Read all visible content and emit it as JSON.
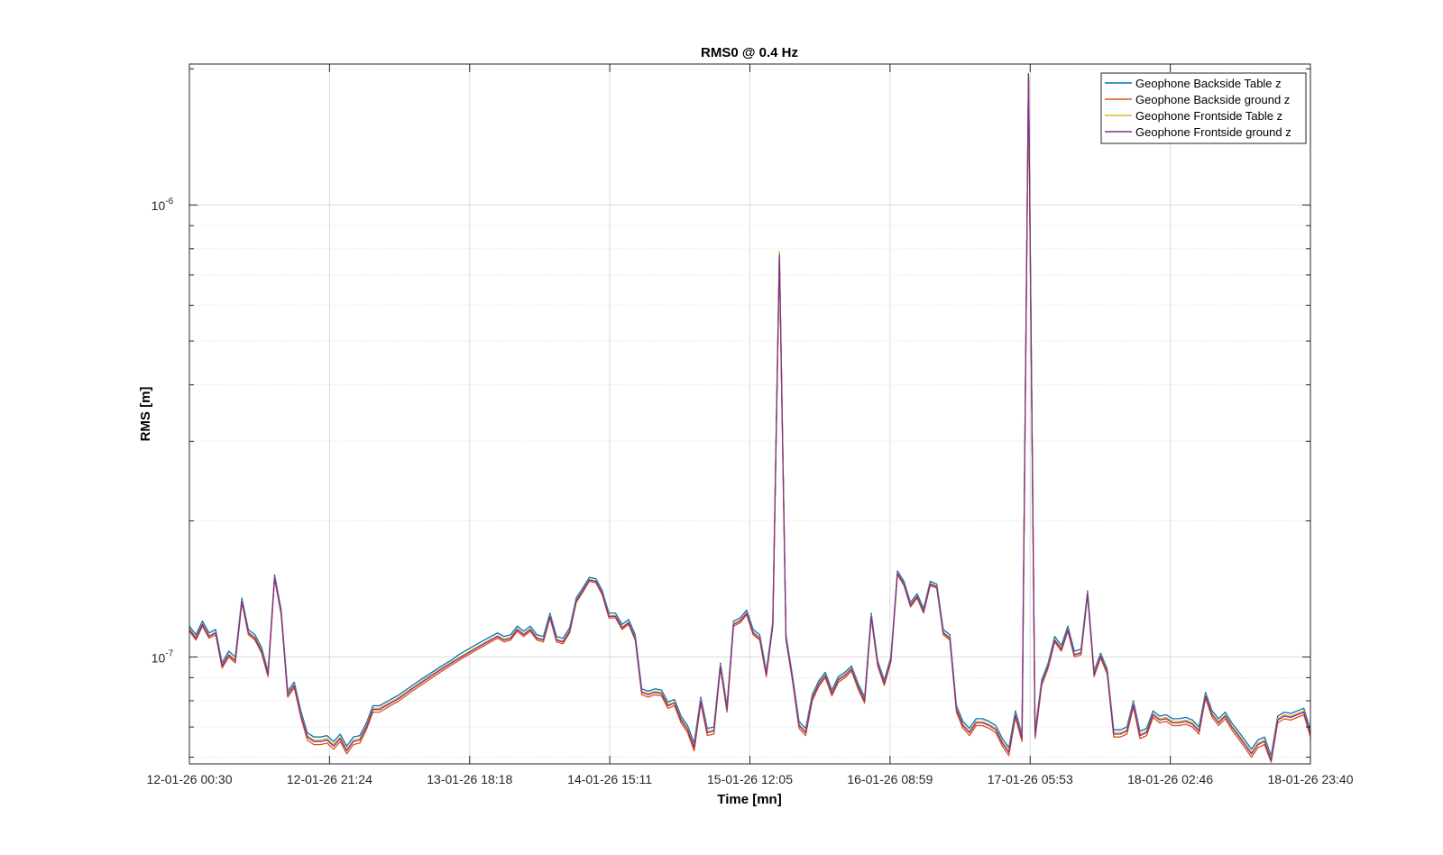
{
  "chart_data": {
    "type": "line",
    "title": "RMS0 @ 0.4 Hz",
    "xlabel": "Time [mn]",
    "ylabel": "RMS [m]",
    "yscale": "log",
    "ylim": [
      5.8e-08,
      2.05e-06
    ],
    "xlim": [
      "12-01-26 00:30",
      "18-01-26 23:40"
    ],
    "x_ticks": [
      "12-01-26 00:30",
      "12-01-26 21:24",
      "13-01-26 18:18",
      "14-01-26 15:11",
      "15-01-26 12:05",
      "16-01-26 08:59",
      "17-01-26 05:53",
      "18-01-26 02:46",
      "18-01-26 23:40"
    ],
    "y_ticks": [
      {
        "value": 1e-07,
        "base": "10",
        "exp": "-7"
      },
      {
        "value": 1e-06,
        "base": "10",
        "exp": "-6"
      }
    ],
    "grid": true,
    "legend_position": "top-right",
    "colors": [
      "#0072BD",
      "#D95319",
      "#EDB120",
      "#7E2F8E"
    ],
    "sample_interval_hours": 1,
    "series": [
      {
        "name": "Geophone Backside Table z",
        "values": [
          1.17e-07,
          1.12e-07,
          1.2e-07,
          1.13e-07,
          1.15e-07,
          9.7e-08,
          1.03e-07,
          1e-07,
          1.35e-07,
          1.15e-07,
          1.12e-07,
          1.05e-07,
          9.3e-08,
          1.52e-07,
          1.27e-07,
          8.4e-08,
          8.8e-08,
          7.6e-08,
          6.8e-08,
          6.65e-08,
          6.65e-08,
          6.7e-08,
          6.5e-08,
          6.75e-08,
          6.35e-08,
          6.65e-08,
          6.7e-08,
          7.15e-08,
          7.8e-08,
          7.8e-08,
          7.95e-08,
          8.1e-08,
          8.25e-08,
          8.45e-08,
          8.65e-08,
          8.85e-08,
          9.05e-08,
          9.25e-08,
          9.45e-08,
          9.65e-08,
          9.85e-08,
          1.01e-07,
          1.03e-07,
          1.05e-07,
          1.07e-07,
          1.09e-07,
          1.11e-07,
          1.13e-07,
          1.11e-07,
          1.12e-07,
          1.17e-07,
          1.14e-07,
          1.17e-07,
          1.12e-07,
          1.11e-07,
          1.25e-07,
          1.11e-07,
          1.1e-07,
          1.16e-07,
          1.35e-07,
          1.42e-07,
          1.5e-07,
          1.49e-07,
          1.4e-07,
          1.25e-07,
          1.25e-07,
          1.18e-07,
          1.21e-07,
          1.12e-07,
          8.5e-08,
          8.4e-08,
          8.5e-08,
          8.45e-08,
          7.95e-08,
          8.05e-08,
          7.4e-08,
          7.05e-08,
          6.45e-08,
          8.15e-08,
          6.95e-08,
          7e-08,
          9.7e-08,
          7.8e-08,
          1.2e-07,
          1.22e-07,
          1.27e-07,
          1.15e-07,
          1.12e-07,
          9.3e-08,
          1.2e-07,
          7.8e-07,
          1.12e-07,
          9.1e-08,
          7.2e-08,
          6.95e-08,
          8.25e-08,
          8.85e-08,
          9.25e-08,
          8.45e-08,
          9.05e-08,
          9.25e-08,
          9.55e-08,
          8.75e-08,
          8.15e-08,
          1.25e-07,
          9.8e-08,
          8.9e-08,
          1e-07,
          1.55e-07,
          1.47e-07,
          1.32e-07,
          1.38e-07,
          1.28e-07,
          1.47e-07,
          1.45e-07,
          1.15e-07,
          1.12e-07,
          7.8e-08,
          7.2e-08,
          6.95e-08,
          7.3e-08,
          7.3e-08,
          7.2e-08,
          7.05e-08,
          6.6e-08,
          6.3e-08,
          7.6e-08,
          6.75e-08,
          1.95e-06,
          6.85e-08,
          8.9e-08,
          9.7e-08,
          1.11e-07,
          1.06e-07,
          1.17e-07,
          1.03e-07,
          1.04e-07,
          1.4e-07,
          9.3e-08,
          1.02e-07,
          9.4e-08,
          6.9e-08,
          6.9e-08,
          7e-08,
          8e-08,
          6.85e-08,
          6.95e-08,
          7.6e-08,
          7.4e-08,
          7.45e-08,
          7.3e-08,
          7.3e-08,
          7.35e-08,
          7.25e-08,
          7e-08,
          8.35e-08,
          7.6e-08,
          7.3e-08,
          7.55e-08,
          7.15e-08,
          6.85e-08,
          6.55e-08,
          6.25e-08,
          6.55e-08,
          6.65e-08,
          6.05e-08,
          7.4e-08,
          7.55e-08,
          7.5e-08,
          7.6e-08,
          7.7e-08,
          6.9e-08
        ]
      },
      {
        "name": "Geophone Backside ground z",
        "values": [
          1.14e-07,
          1.09e-07,
          1.17e-07,
          1.1e-07,
          1.12e-07,
          9.45e-08,
          1e-07,
          9.7e-08,
          1.32e-07,
          1.12e-07,
          1.09e-07,
          1.02e-07,
          9.05e-08,
          1.49e-07,
          1.24e-07,
          8.15e-08,
          8.55e-08,
          7.35e-08,
          6.55e-08,
          6.4e-08,
          6.4e-08,
          6.45e-08,
          6.25e-08,
          6.5e-08,
          6.1e-08,
          6.4e-08,
          6.45e-08,
          6.9e-08,
          7.55e-08,
          7.55e-08,
          7.7e-08,
          7.85e-08,
          8e-08,
          8.2e-08,
          8.4e-08,
          8.6e-08,
          8.8e-08,
          9e-08,
          9.2e-08,
          9.4e-08,
          9.6e-08,
          9.8e-08,
          1e-07,
          1.02e-07,
          1.04e-07,
          1.06e-07,
          1.08e-07,
          1.1e-07,
          1.08e-07,
          1.09e-07,
          1.14e-07,
          1.11e-07,
          1.14e-07,
          1.09e-07,
          1.08e-07,
          1.22e-07,
          1.08e-07,
          1.07e-07,
          1.13e-07,
          1.32e-07,
          1.39e-07,
          1.47e-07,
          1.46e-07,
          1.37e-07,
          1.22e-07,
          1.22e-07,
          1.15e-07,
          1.18e-07,
          1.09e-07,
          8.25e-08,
          8.15e-08,
          8.25e-08,
          8.2e-08,
          7.7e-08,
          7.8e-08,
          7.15e-08,
          6.8e-08,
          6.2e-08,
          7.9e-08,
          6.7e-08,
          6.75e-08,
          9.45e-08,
          7.55e-08,
          1.17e-07,
          1.19e-07,
          1.24e-07,
          1.12e-07,
          1.09e-07,
          9.05e-08,
          1.17e-07,
          7.7e-07,
          1.09e-07,
          8.85e-08,
          6.95e-08,
          6.7e-08,
          8e-08,
          8.6e-08,
          9e-08,
          8.2e-08,
          8.8e-08,
          9e-08,
          9.3e-08,
          8.5e-08,
          7.9e-08,
          1.22e-07,
          9.55e-08,
          8.65e-08,
          9.75e-08,
          1.52e-07,
          1.44e-07,
          1.29e-07,
          1.35e-07,
          1.25e-07,
          1.44e-07,
          1.42e-07,
          1.12e-07,
          1.09e-07,
          7.55e-08,
          6.95e-08,
          6.7e-08,
          7.05e-08,
          7.05e-08,
          6.95e-08,
          6.8e-08,
          6.35e-08,
          6.05e-08,
          7.35e-08,
          6.5e-08,
          1.93e-06,
          6.6e-08,
          8.65e-08,
          9.45e-08,
          1.08e-07,
          1.03e-07,
          1.14e-07,
          1e-07,
          1.01e-07,
          1.37e-07,
          9.05e-08,
          9.95e-08,
          9.15e-08,
          6.65e-08,
          6.65e-08,
          6.75e-08,
          7.75e-08,
          6.6e-08,
          6.7e-08,
          7.35e-08,
          7.15e-08,
          7.2e-08,
          7.05e-08,
          7.05e-08,
          7.1e-08,
          7e-08,
          6.75e-08,
          8.1e-08,
          7.35e-08,
          7.05e-08,
          7.3e-08,
          6.9e-08,
          6.6e-08,
          6.3e-08,
          6e-08,
          6.3e-08,
          6.4e-08,
          5.85e-08,
          7.15e-08,
          7.3e-08,
          7.25e-08,
          7.35e-08,
          7.45e-08,
          6.65e-08
        ]
      },
      {
        "name": "Geophone Frontside Table z",
        "values": [
          1.155e-07,
          1.105e-07,
          1.185e-07,
          1.115e-07,
          1.135e-07,
          9.6e-08,
          1.015e-07,
          9.85e-08,
          1.335e-07,
          1.135e-07,
          1.105e-07,
          1.035e-07,
          9.2e-08,
          1.505e-07,
          1.255e-07,
          8.3e-08,
          8.7e-08,
          7.5e-08,
          6.7e-08,
          6.55e-08,
          6.55e-08,
          6.6e-08,
          6.4e-08,
          6.65e-08,
          6.25e-08,
          6.55e-08,
          6.6e-08,
          7.05e-08,
          7.7e-08,
          7.7e-08,
          7.85e-08,
          8e-08,
          8.15e-08,
          8.35e-08,
          8.55e-08,
          8.75e-08,
          8.95e-08,
          9.15e-08,
          9.35e-08,
          9.55e-08,
          9.75e-08,
          9.95e-08,
          1.015e-07,
          1.035e-07,
          1.055e-07,
          1.075e-07,
          1.095e-07,
          1.115e-07,
          1.095e-07,
          1.105e-07,
          1.155e-07,
          1.125e-07,
          1.155e-07,
          1.105e-07,
          1.095e-07,
          1.235e-07,
          1.095e-07,
          1.085e-07,
          1.145e-07,
          1.335e-07,
          1.405e-07,
          1.485e-07,
          1.475e-07,
          1.385e-07,
          1.235e-07,
          1.235e-07,
          1.165e-07,
          1.195e-07,
          1.105e-07,
          8.4e-08,
          8.3e-08,
          8.4e-08,
          8.35e-08,
          7.85e-08,
          7.95e-08,
          7.3e-08,
          6.95e-08,
          6.35e-08,
          8.05e-08,
          6.85e-08,
          6.9e-08,
          9.6e-08,
          7.7e-08,
          1.185e-07,
          1.205e-07,
          1.255e-07,
          1.135e-07,
          1.105e-07,
          9.2e-08,
          1.185e-07,
          7.9e-07,
          1.105e-07,
          9e-08,
          7.1e-08,
          6.85e-08,
          8.15e-08,
          8.75e-08,
          9.15e-08,
          8.35e-08,
          8.95e-08,
          9.15e-08,
          9.45e-08,
          8.65e-08,
          8.05e-08,
          1.235e-07,
          9.7e-08,
          8.8e-08,
          9.9e-08,
          1.535e-07,
          1.455e-07,
          1.305e-07,
          1.365e-07,
          1.265e-07,
          1.455e-07,
          1.435e-07,
          1.135e-07,
          1.105e-07,
          7.7e-08,
          7.1e-08,
          6.85e-08,
          7.2e-08,
          7.2e-08,
          7.1e-08,
          6.95e-08,
          6.5e-08,
          6.2e-08,
          7.5e-08,
          6.65e-08,
          1.94e-06,
          6.75e-08,
          8.8e-08,
          9.6e-08,
          1.095e-07,
          1.045e-07,
          1.155e-07,
          1.015e-07,
          1.025e-07,
          1.385e-07,
          9.2e-08,
          1.01e-07,
          9.3e-08,
          6.8e-08,
          6.8e-08,
          6.9e-08,
          7.9e-08,
          6.75e-08,
          6.85e-08,
          7.5e-08,
          7.3e-08,
          7.35e-08,
          7.2e-08,
          7.2e-08,
          7.25e-08,
          7.15e-08,
          6.9e-08,
          8.25e-08,
          7.5e-08,
          7.2e-08,
          7.45e-08,
          7.05e-08,
          6.75e-08,
          6.45e-08,
          6.15e-08,
          6.45e-08,
          6.55e-08,
          5.95e-08,
          7.3e-08,
          7.45e-08,
          7.4e-08,
          7.5e-08,
          7.6e-08,
          6.8e-08
        ]
      },
      {
        "name": "Geophone Frontside ground z",
        "values": [
          1.15e-07,
          1.1e-07,
          1.18e-07,
          1.11e-07,
          1.13e-07,
          9.55e-08,
          1.01e-07,
          9.8e-08,
          1.33e-07,
          1.13e-07,
          1.1e-07,
          1.03e-07,
          9.15e-08,
          1.5e-07,
          1.25e-07,
          8.25e-08,
          8.65e-08,
          7.45e-08,
          6.65e-08,
          6.5e-08,
          6.5e-08,
          6.55e-08,
          6.35e-08,
          6.6e-08,
          6.2e-08,
          6.5e-08,
          6.55e-08,
          7e-08,
          7.65e-08,
          7.65e-08,
          7.8e-08,
          7.95e-08,
          8.1e-08,
          8.3e-08,
          8.5e-08,
          8.7e-08,
          8.9e-08,
          9.1e-08,
          9.3e-08,
          9.5e-08,
          9.7e-08,
          9.9e-08,
          1.01e-07,
          1.03e-07,
          1.05e-07,
          1.07e-07,
          1.09e-07,
          1.11e-07,
          1.09e-07,
          1.1e-07,
          1.15e-07,
          1.12e-07,
          1.15e-07,
          1.1e-07,
          1.09e-07,
          1.23e-07,
          1.09e-07,
          1.08e-07,
          1.14e-07,
          1.33e-07,
          1.4e-07,
          1.48e-07,
          1.47e-07,
          1.38e-07,
          1.23e-07,
          1.23e-07,
          1.16e-07,
          1.19e-07,
          1.1e-07,
          8.35e-08,
          8.25e-08,
          8.35e-08,
          8.3e-08,
          7.8e-08,
          7.9e-08,
          7.25e-08,
          6.9e-08,
          6.3e-08,
          8e-08,
          6.8e-08,
          6.85e-08,
          9.55e-08,
          7.65e-08,
          1.18e-07,
          1.2e-07,
          1.25e-07,
          1.13e-07,
          1.1e-07,
          9.15e-08,
          1.18e-07,
          7.75e-07,
          1.1e-07,
          8.95e-08,
          7.05e-08,
          6.8e-08,
          8.1e-08,
          8.7e-08,
          9.1e-08,
          8.3e-08,
          8.9e-08,
          9.1e-08,
          9.4e-08,
          8.6e-08,
          8e-08,
          1.23e-07,
          9.65e-08,
          8.75e-08,
          9.85e-08,
          1.53e-07,
          1.45e-07,
          1.3e-07,
          1.36e-07,
          1.26e-07,
          1.45e-07,
          1.43e-07,
          1.13e-07,
          1.1e-07,
          7.65e-08,
          7.05e-08,
          6.8e-08,
          7.15e-08,
          7.15e-08,
          7.05e-08,
          6.9e-08,
          6.45e-08,
          6.15e-08,
          7.45e-08,
          6.6e-08,
          1.95e-06,
          6.7e-08,
          8.75e-08,
          9.55e-08,
          1.09e-07,
          1.04e-07,
          1.15e-07,
          1.01e-07,
          1.02e-07,
          1.38e-07,
          9.15e-08,
          1.005e-07,
          9.25e-08,
          6.75e-08,
          6.75e-08,
          6.85e-08,
          7.85e-08,
          6.7e-08,
          6.8e-08,
          7.45e-08,
          7.25e-08,
          7.3e-08,
          7.15e-08,
          7.15e-08,
          7.2e-08,
          7.1e-08,
          6.85e-08,
          8.2e-08,
          7.45e-08,
          7.15e-08,
          7.4e-08,
          7e-08,
          6.7e-08,
          6.4e-08,
          6.1e-08,
          6.4e-08,
          6.5e-08,
          5.9e-08,
          7.25e-08,
          7.4e-08,
          7.35e-08,
          7.45e-08,
          7.55e-08,
          6.75e-08
        ]
      }
    ]
  }
}
